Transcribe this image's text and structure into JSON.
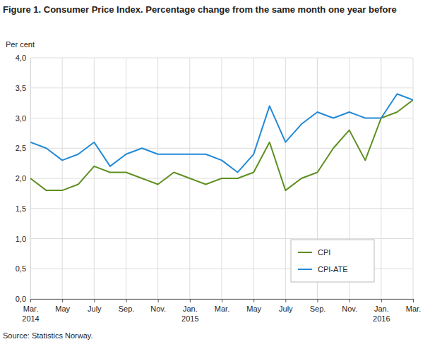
{
  "chart_data": {
    "type": "line",
    "title": "Figure 1. Consumer Price Index. Percentage change from the same month one year before",
    "y_label": "Per cent",
    "source": "Source: Statistics Norway.",
    "categories": [
      "Mar. 2014",
      null,
      "May",
      null,
      "July",
      null,
      "Sep.",
      null,
      "Nov.",
      null,
      "Jan. 2015",
      null,
      "Mar.",
      null,
      "May",
      null,
      "July",
      null,
      "Sep.",
      null,
      "Nov.",
      null,
      "Jan. 2016",
      null,
      "Mar."
    ],
    "series": [
      {
        "name": "CPI",
        "color": "#5f8f22",
        "values": [
          2.0,
          1.8,
          1.8,
          1.9,
          2.2,
          2.1,
          2.1,
          2.0,
          1.9,
          2.1,
          2.0,
          1.9,
          2.0,
          2.0,
          2.1,
          2.6,
          1.8,
          2.0,
          2.1,
          2.5,
          2.8,
          2.3,
          3.0,
          3.1,
          3.3
        ]
      },
      {
        "name": "CPI-ATE",
        "color": "#2389d6",
        "values": [
          2.6,
          2.5,
          2.3,
          2.4,
          2.6,
          2.2,
          2.4,
          2.5,
          2.4,
          2.4,
          2.4,
          2.4,
          2.3,
          2.1,
          2.4,
          3.2,
          2.6,
          2.9,
          3.1,
          3.0,
          3.1,
          3.0,
          3.0,
          3.4,
          3.3
        ]
      }
    ],
    "ylim": [
      0,
      4
    ],
    "yticks": [
      {
        "value": 0,
        "label": "0,0"
      },
      {
        "value": 0.5,
        "label": "0,5"
      },
      {
        "value": 1,
        "label": "1,0"
      },
      {
        "value": 1.5,
        "label": "1,5"
      },
      {
        "value": 2,
        "label": "2,0"
      },
      {
        "value": 2.5,
        "label": "2,5"
      },
      {
        "value": 3,
        "label": "3,0"
      },
      {
        "value": 3.5,
        "label": "3,5"
      },
      {
        "value": 4,
        "label": "4,0"
      }
    ],
    "grid": true,
    "legend": "lower right"
  }
}
